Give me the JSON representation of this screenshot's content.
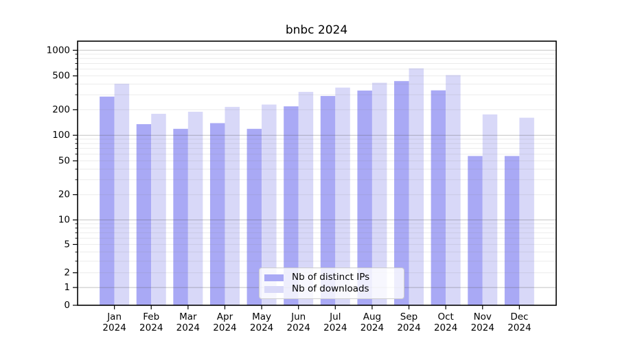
{
  "title": "bnbc 2024",
  "chart_data": {
    "type": "bar",
    "title": "bnbc 2024",
    "categories": [
      "Jan 2024",
      "Feb 2024",
      "Mar 2024",
      "Apr 2024",
      "May 2024",
      "Jun 2024",
      "Jul 2024",
      "Aug 2024",
      "Sep 2024",
      "Oct 2024",
      "Nov 2024",
      "Dec 2024"
    ],
    "series": [
      {
        "name": "Nb of distinct IPs",
        "color": "#a9a9f5",
        "values": [
          285,
          135,
          119,
          139,
          119,
          219,
          290,
          336,
          434,
          338,
          57,
          57
        ]
      },
      {
        "name": "Nb of downloads",
        "color": "#d8d8f8",
        "values": [
          404,
          179,
          189,
          216,
          230,
          324,
          364,
          415,
          613,
          511,
          176,
          161
        ]
      }
    ],
    "y_scale": "symlog (asinh-like, linear near 0, log above)",
    "y_ticks": [
      0,
      1,
      2,
      5,
      10,
      20,
      50,
      100,
      200,
      500,
      1000
    ],
    "ylim": [
      0,
      1280
    ],
    "xlabel": "",
    "ylabel": "",
    "grid": true,
    "legend_position": "lower center"
  }
}
